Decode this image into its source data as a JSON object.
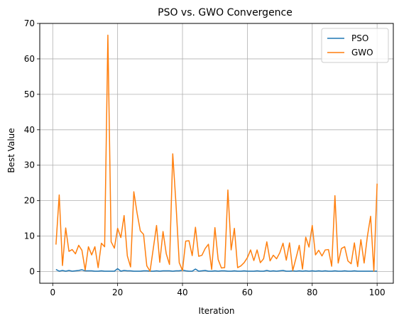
{
  "chart_data": {
    "type": "line",
    "title": "PSO vs. GWO Convergence",
    "xlabel": "Iteration",
    "ylabel": "Best Value",
    "xlim": [
      -4,
      105
    ],
    "ylim": [
      -3.3,
      70
    ],
    "xticks": [
      0,
      20,
      40,
      60,
      80,
      100
    ],
    "yticks": [
      0,
      10,
      20,
      30,
      40,
      50,
      60,
      70
    ],
    "grid": true,
    "legend_position": "top-right",
    "x": [
      1,
      2,
      3,
      4,
      5,
      6,
      7,
      8,
      9,
      10,
      11,
      12,
      13,
      14,
      15,
      16,
      17,
      18,
      19,
      20,
      21,
      22,
      23,
      24,
      25,
      26,
      27,
      28,
      29,
      30,
      31,
      32,
      33,
      34,
      35,
      36,
      37,
      38,
      39,
      40,
      41,
      42,
      43,
      44,
      45,
      46,
      47,
      48,
      49,
      50,
      51,
      52,
      53,
      54,
      55,
      56,
      57,
      58,
      59,
      60,
      61,
      62,
      63,
      64,
      65,
      66,
      67,
      68,
      69,
      70,
      71,
      72,
      73,
      74,
      75,
      76,
      77,
      78,
      79,
      80,
      81,
      82,
      83,
      84,
      85,
      86,
      87,
      88,
      89,
      90,
      91,
      92,
      93,
      94,
      95,
      96,
      97,
      98,
      99,
      100
    ],
    "series": [
      {
        "name": "PSO",
        "color": "#1f77b4",
        "values": [
          0.6,
          0.1,
          0.3,
          0.1,
          0.3,
          0.1,
          0.2,
          0.3,
          0.5,
          0.2,
          0.2,
          0.2,
          0.1,
          0.1,
          0.2,
          0.1,
          0.1,
          0.1,
          0.1,
          0.8,
          0.1,
          0.3,
          0.2,
          0.2,
          0.1,
          0.1,
          0.1,
          0.2,
          0.2,
          0.1,
          0.1,
          0.2,
          0.1,
          0.2,
          0.2,
          0.2,
          0.1,
          0.2,
          0.2,
          0.4,
          0.2,
          0.1,
          0.1,
          0.7,
          0.1,
          0.2,
          0.3,
          0.1,
          0.1,
          0.2,
          0.1,
          0.2,
          0.2,
          0.1,
          0.1,
          0.2,
          0.1,
          0.1,
          0.2,
          0.1,
          0.1,
          0.1,
          0.2,
          0.1,
          0.1,
          0.3,
          0.1,
          0.2,
          0.1,
          0.2,
          0.3,
          0.1,
          0.1,
          0.2,
          0.1,
          0.2,
          0.1,
          0.2,
          0.1,
          0.2,
          0.1,
          0.2,
          0.1,
          0.2,
          0.1,
          0.1,
          0.2,
          0.1,
          0.1,
          0.2,
          0.1,
          0.1,
          0.2,
          0.1,
          0.1,
          0.1,
          0.1,
          0.1,
          0.1,
          0.1
        ]
      },
      {
        "name": "GWO",
        "color": "#ff7f0e",
        "values": [
          7.6,
          21.6,
          1.7,
          12.3,
          5.7,
          6.2,
          5.0,
          7.4,
          6.0,
          0.4,
          7.0,
          4.7,
          7.0,
          1.1,
          8.0,
          7.0,
          66.7,
          8.4,
          6.6,
          12.2,
          9.6,
          15.8,
          4.4,
          1.3,
          22.5,
          16.5,
          11.5,
          10.5,
          1.6,
          0.1,
          6.5,
          13.0,
          2.6,
          11.3,
          5.0,
          2.0,
          33.2,
          19.0,
          2.5,
          0.3,
          8.6,
          8.7,
          4.5,
          12.5,
          4.3,
          4.6,
          6.5,
          7.7,
          0.6,
          12.4,
          3.4,
          1.0,
          1.1,
          23.0,
          6.1,
          12.2,
          1.1,
          1.6,
          2.5,
          3.9,
          6.1,
          3.1,
          6.1,
          2.5,
          3.6,
          8.4,
          3.0,
          4.6,
          3.6,
          5.3,
          8.0,
          3.2,
          8.1,
          0.3,
          3.8,
          7.4,
          0.7,
          9.7,
          6.9,
          13.0,
          4.7,
          6.0,
          4.4,
          6.1,
          6.2,
          1.5,
          21.4,
          2.4,
          6.5,
          7.0,
          3.0,
          2.2,
          8.1,
          1.4,
          9.0,
          2.4,
          9.9,
          15.6,
          0.1,
          24.8
        ]
      }
    ]
  }
}
